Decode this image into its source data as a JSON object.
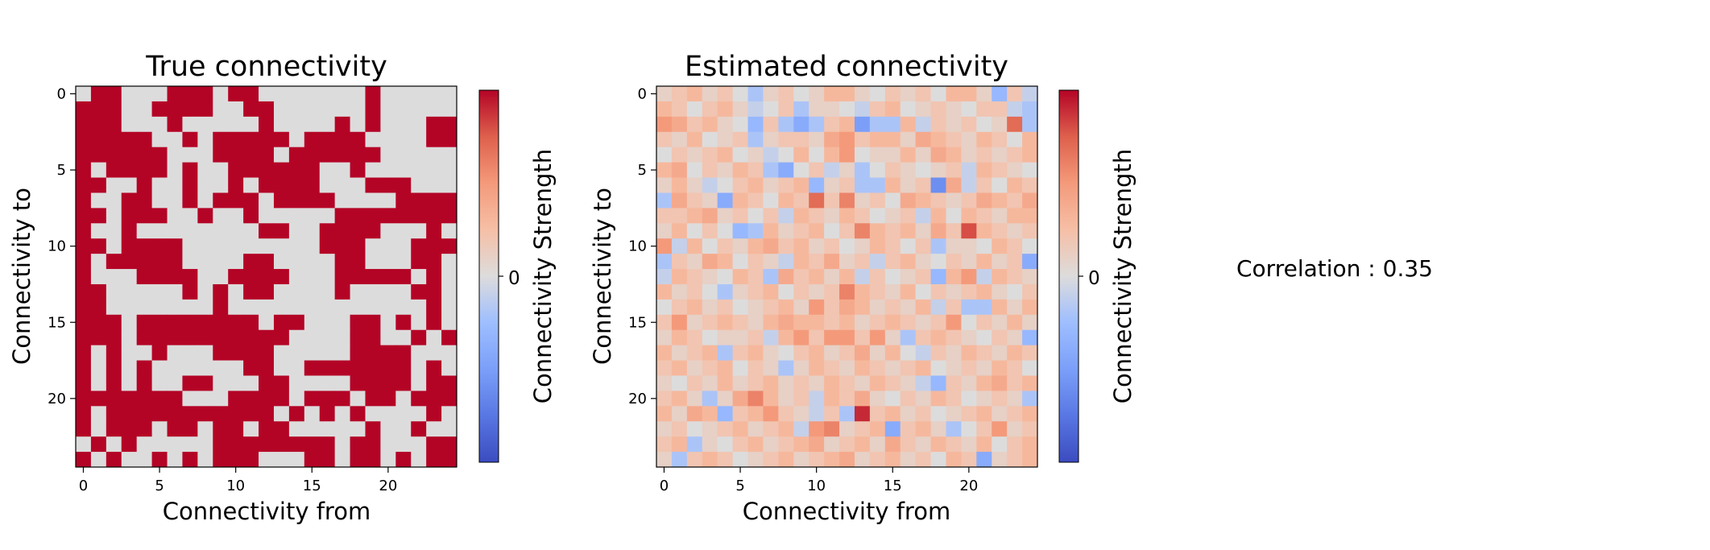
{
  "chart_data": [
    {
      "type": "heatmap",
      "title": "True connectivity",
      "xlabel": "Connectivity from",
      "ylabel": "Connectivity to",
      "xticks": [
        0,
        5,
        10,
        15,
        20
      ],
      "yticks": [
        0,
        5,
        10,
        15,
        20
      ],
      "colorbar_label": "Connectivity Strength",
      "colorbar_ticks": [
        "0"
      ],
      "colormap": "coolwarm",
      "value_range": [
        -1,
        1
      ],
      "size": 25,
      "matrix": [
        "0110001110110000000100000",
        "1110011110011000000100000",
        "1110001000001000010100011",
        "1111100101111101111000011",
        "1111110001111011111100000",
        "1011110100111111001000000",
        "1100100100101111000111000",
        "1001100101110111100001111",
        "1101110010010000011111111",
        "1001000000001100111100010",
        "1101111000000000111000111",
        "1011111000011000011000110",
        "1000111100111100011111010",
        "1100000101011000010000110",
        "1100000001000000000000010",
        "1110111111110110001101010",
        "1110111111111100001100101",
        "1010010001111000001111000",
        "1010100000011001111111010",
        "1010100110001100001111011",
        "1111111000111101110110111",
        "1011111111111010101000010",
        "1011101101101100000100100",
        "0101000001111111101100011",
        "1010010101110001101101011"
      ]
    },
    {
      "type": "heatmap",
      "title": "Estimated connectivity",
      "xlabel": "Connectivity from",
      "ylabel": "Connectivity to",
      "xticks": [
        0,
        5,
        10,
        15,
        20
      ],
      "yticks": [
        0,
        5,
        10,
        15,
        20
      ],
      "colorbar_label": "Connectivity Strength",
      "colorbar_ticks": [
        "0"
      ],
      "colormap": "coolwarm",
      "value_range": [
        -1,
        1
      ],
      "size": 25,
      "matrix": [
        [
          0.1,
          0.2,
          0.3,
          0.1,
          0.2,
          0.0,
          -0.2,
          0.1,
          0.2,
          0.0,
          0.1,
          0.3,
          0.3,
          0.1,
          0.0,
          0.2,
          0.1,
          0.2,
          0.0,
          0.3,
          0.3,
          0.1,
          -0.3,
          0.2,
          -0.1
        ],
        [
          0.3,
          0.2,
          0.0,
          0.2,
          0.3,
          0.1,
          -0.1,
          0.0,
          0.2,
          -0.2,
          0.1,
          0.1,
          0.0,
          -0.1,
          0.2,
          0.3,
          0.0,
          0.1,
          0.2,
          0.1,
          0.0,
          0.2,
          0.2,
          -0.1,
          -0.2
        ],
        [
          0.5,
          0.4,
          0.2,
          0.3,
          0.1,
          0.0,
          -0.3,
          0.2,
          -0.2,
          -0.4,
          -0.2,
          0.2,
          0.3,
          -0.5,
          -0.2,
          -0.2,
          0.3,
          -0.1,
          0.2,
          0.1,
          0.2,
          0.0,
          0.1,
          0.7,
          -0.2
        ],
        [
          0.2,
          0.1,
          0.3,
          0.0,
          0.1,
          0.2,
          -0.2,
          0.1,
          0.2,
          0.2,
          0.1,
          0.4,
          0.5,
          0.2,
          0.3,
          0.3,
          0.1,
          0.4,
          0.3,
          0.2,
          0.1,
          0.3,
          0.2,
          0.0,
          0.3
        ],
        [
          0.0,
          0.2,
          0.1,
          0.2,
          0.3,
          0.0,
          0.1,
          -0.1,
          0.0,
          0.3,
          0.0,
          0.3,
          0.5,
          0.0,
          0.1,
          0.1,
          0.3,
          0.1,
          0.4,
          0.3,
          0.1,
          0.2,
          0.1,
          0.2,
          0.3
        ],
        [
          0.3,
          0.4,
          0.0,
          0.2,
          0.1,
          0.3,
          0.2,
          -0.2,
          -0.4,
          0.0,
          0.2,
          -0.1,
          0.1,
          -0.2,
          0.0,
          0.2,
          0.1,
          0.0,
          0.1,
          0.2,
          -0.1,
          0.3,
          0.2,
          0.1,
          0.0
        ],
        [
          0.1,
          0.3,
          0.1,
          -0.1,
          0.0,
          0.2,
          0.3,
          0.1,
          0.2,
          0.3,
          -0.3,
          0.1,
          0.2,
          -0.2,
          -0.2,
          0.3,
          0.1,
          0.2,
          -0.6,
          0.4,
          -0.1,
          0.2,
          0.0,
          0.3,
          0.2
        ],
        [
          -0.2,
          0.4,
          0.2,
          0.1,
          -0.4,
          0.3,
          0.2,
          0.0,
          0.3,
          0.2,
          0.7,
          0.2,
          0.6,
          0.1,
          0.2,
          0.0,
          0.4,
          0.3,
          0.2,
          0.1,
          0.2,
          0.4,
          0.3,
          0.2,
          0.4
        ],
        [
          0.2,
          0.2,
          0.3,
          0.4,
          0.1,
          0.2,
          0.0,
          0.2,
          -0.1,
          0.3,
          0.2,
          0.1,
          0.3,
          0.2,
          0.0,
          0.1,
          0.2,
          -0.1,
          0.3,
          0.0,
          0.3,
          0.2,
          0.1,
          0.3,
          0.3
        ],
        [
          0.1,
          0.3,
          0.0,
          0.2,
          0.0,
          -0.3,
          -0.2,
          0.3,
          0.1,
          0.2,
          0.3,
          0.0,
          0.2,
          0.6,
          0.3,
          0.2,
          0.3,
          0.1,
          0.4,
          0.2,
          0.8,
          0.3,
          0.2,
          0.1,
          0.2
        ],
        [
          0.5,
          -0.1,
          0.3,
          0.0,
          0.2,
          0.1,
          0.3,
          0.4,
          0.2,
          0.3,
          0.1,
          0.2,
          0.0,
          0.1,
          0.3,
          0.2,
          0.0,
          0.2,
          -0.2,
          0.1,
          0.1,
          0.0,
          0.3,
          0.2,
          0.0
        ],
        [
          -0.2,
          0.2,
          0.1,
          0.4,
          0.3,
          0.0,
          0.2,
          0.1,
          -0.1,
          0.3,
          0.2,
          0.4,
          0.1,
          0.2,
          -0.1,
          0.2,
          0.3,
          0.1,
          0.0,
          0.2,
          0.1,
          0.3,
          0.1,
          0.2,
          -0.4
        ],
        [
          -0.1,
          0.3,
          0.2,
          0.1,
          0.0,
          0.3,
          0.2,
          -0.2,
          0.4,
          0.2,
          0.3,
          0.1,
          0.3,
          -0.1,
          0.2,
          0.0,
          0.1,
          0.2,
          -0.3,
          0.3,
          0.5,
          -0.1,
          0.3,
          0.2,
          0.1
        ],
        [
          0.3,
          0.1,
          0.2,
          0.0,
          -0.2,
          0.1,
          0.2,
          0.3,
          0.0,
          0.2,
          0.1,
          0.2,
          0.6,
          0.3,
          0.2,
          0.1,
          0.3,
          0.0,
          0.2,
          0.1,
          0.2,
          0.3,
          0.1,
          0.0,
          0.2
        ],
        [
          0.0,
          0.2,
          0.3,
          0.1,
          0.2,
          0.0,
          0.1,
          0.2,
          0.3,
          0.1,
          0.5,
          0.2,
          0.4,
          0.3,
          0.1,
          0.2,
          0.1,
          0.3,
          -0.1,
          0.2,
          -0.2,
          -0.2,
          0.3,
          0.1,
          0.3
        ],
        [
          0.2,
          0.5,
          0.1,
          0.2,
          0.3,
          0.2,
          0.1,
          0.3,
          0.4,
          0.3,
          0.3,
          0.2,
          0.3,
          0.1,
          0.2,
          0.3,
          0.2,
          0.1,
          0.2,
          0.5,
          0.0,
          0.2,
          0.1,
          0.3,
          0.1
        ],
        [
          0.1,
          0.3,
          0.2,
          0.0,
          0.1,
          0.1,
          0.2,
          -0.1,
          0.3,
          0.5,
          0.2,
          0.5,
          0.5,
          0.2,
          0.5,
          0.1,
          -0.2,
          0.2,
          0.3,
          0.2,
          0.1,
          0.0,
          0.2,
          0.1,
          -0.3
        ],
        [
          0.3,
          0.1,
          0.2,
          0.3,
          -0.2,
          0.2,
          0.3,
          0.1,
          0.0,
          0.2,
          0.3,
          0.1,
          0.2,
          0.4,
          0.1,
          0.3,
          0.0,
          -0.1,
          0.2,
          0.1,
          0.3,
          0.2,
          0.1,
          0.3,
          0.2
        ],
        [
          0.2,
          0.3,
          0.1,
          0.2,
          0.3,
          0.0,
          0.2,
          0.1,
          -0.2,
          0.1,
          0.3,
          0.2,
          0.1,
          0.3,
          0.2,
          0.1,
          0.2,
          0.3,
          0.0,
          0.1,
          0.2,
          0.1,
          0.3,
          0.2,
          0.0
        ],
        [
          0.1,
          0.0,
          0.2,
          0.1,
          0.3,
          0.1,
          0.2,
          0.3,
          0.1,
          0.2,
          0.1,
          0.3,
          0.2,
          0.1,
          0.3,
          0.2,
          0.1,
          -0.1,
          -0.3,
          0.2,
          0.1,
          0.3,
          0.4,
          0.2,
          0.3
        ],
        [
          0.2,
          0.3,
          0.1,
          -0.2,
          0.1,
          0.4,
          0.6,
          0.3,
          0.1,
          0.2,
          -0.1,
          0.3,
          0.2,
          0.4,
          0.1,
          0.0,
          0.2,
          0.1,
          0.3,
          0.2,
          0.0,
          0.1,
          0.2,
          0.1,
          -0.2
        ],
        [
          0.3,
          0.1,
          0.4,
          0.3,
          -0.3,
          0.2,
          0.3,
          0.5,
          0.2,
          0.1,
          -0.1,
          0.2,
          -0.2,
          0.9,
          0.2,
          0.3,
          0.1,
          0.2,
          0.0,
          0.1,
          0.2,
          0.3,
          0.1,
          0.2,
          0.3
        ],
        [
          0.1,
          0.2,
          0.0,
          0.1,
          0.2,
          0.3,
          0.1,
          0.2,
          0.3,
          -0.1,
          0.5,
          0.6,
          0.1,
          0.2,
          0.3,
          -0.4,
          0.2,
          0.3,
          0.1,
          -0.2,
          0.0,
          0.2,
          0.5,
          0.1,
          0.2
        ],
        [
          0.2,
          0.3,
          -0.2,
          0.1,
          0.0,
          0.2,
          0.3,
          0.1,
          0.2,
          0.3,
          0.4,
          0.1,
          0.2,
          0.3,
          0.1,
          0.4,
          0.2,
          0.1,
          0.3,
          0.2,
          0.1,
          0.3,
          0.0,
          0.2,
          0.3
        ],
        [
          0.1,
          -0.2,
          0.2,
          0.3,
          0.2,
          0.0,
          0.1,
          0.2,
          0.3,
          0.1,
          0.2,
          0.3,
          0.4,
          0.1,
          0.2,
          0.3,
          0.1,
          0.2,
          0.0,
          0.3,
          0.2,
          -0.4,
          0.1,
          0.2,
          0.3
        ]
      ]
    }
  ],
  "annotation": {
    "correlation_text": "Correlation : 0.35"
  },
  "colors": {
    "coolwarm_low": "#3b4cc0",
    "coolwarm_mid": "#dddcdc",
    "coolwarm_high": "#b40426"
  }
}
